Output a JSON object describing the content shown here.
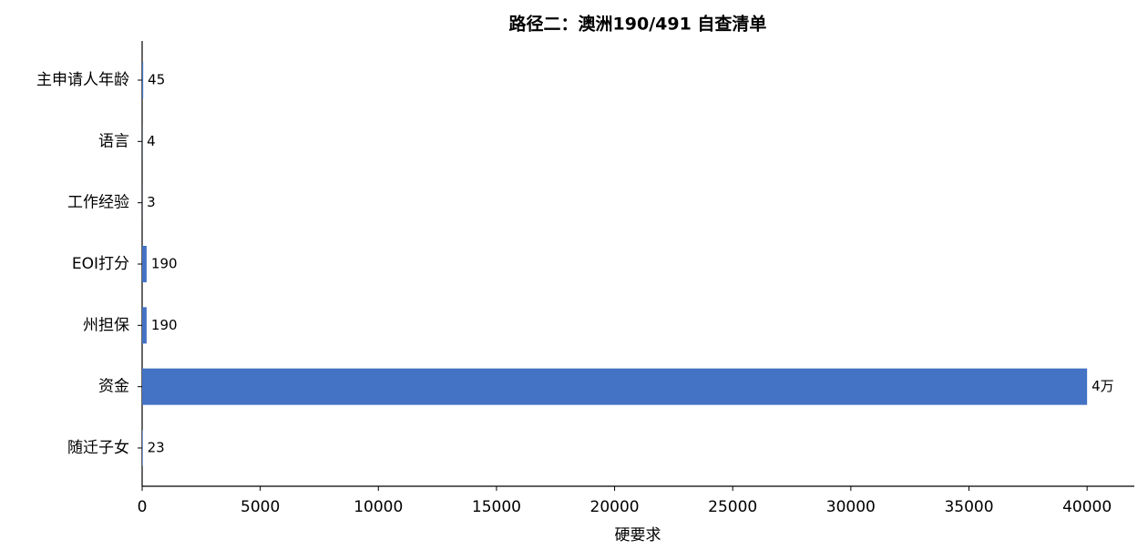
{
  "chart_data": {
    "type": "barh",
    "title": "路径二：澳洲190/491 自查清单",
    "x_label": "硬要求",
    "categories": [
      "主申请人年龄",
      "语言",
      "工作经验",
      "EOI打分",
      "州担保",
      "资金",
      "随迁子女"
    ],
    "values": [
      45,
      4,
      3,
      190,
      190,
      40000,
      23
    ],
    "value_labels": [
      "45",
      "4",
      "3",
      "190",
      "190",
      "4万",
      "23"
    ],
    "color": "#4472c4",
    "xlim": [
      0,
      42000
    ],
    "xticks": [
      0,
      5000,
      10000,
      15000,
      20000,
      25000,
      30000,
      35000,
      40000
    ]
  }
}
